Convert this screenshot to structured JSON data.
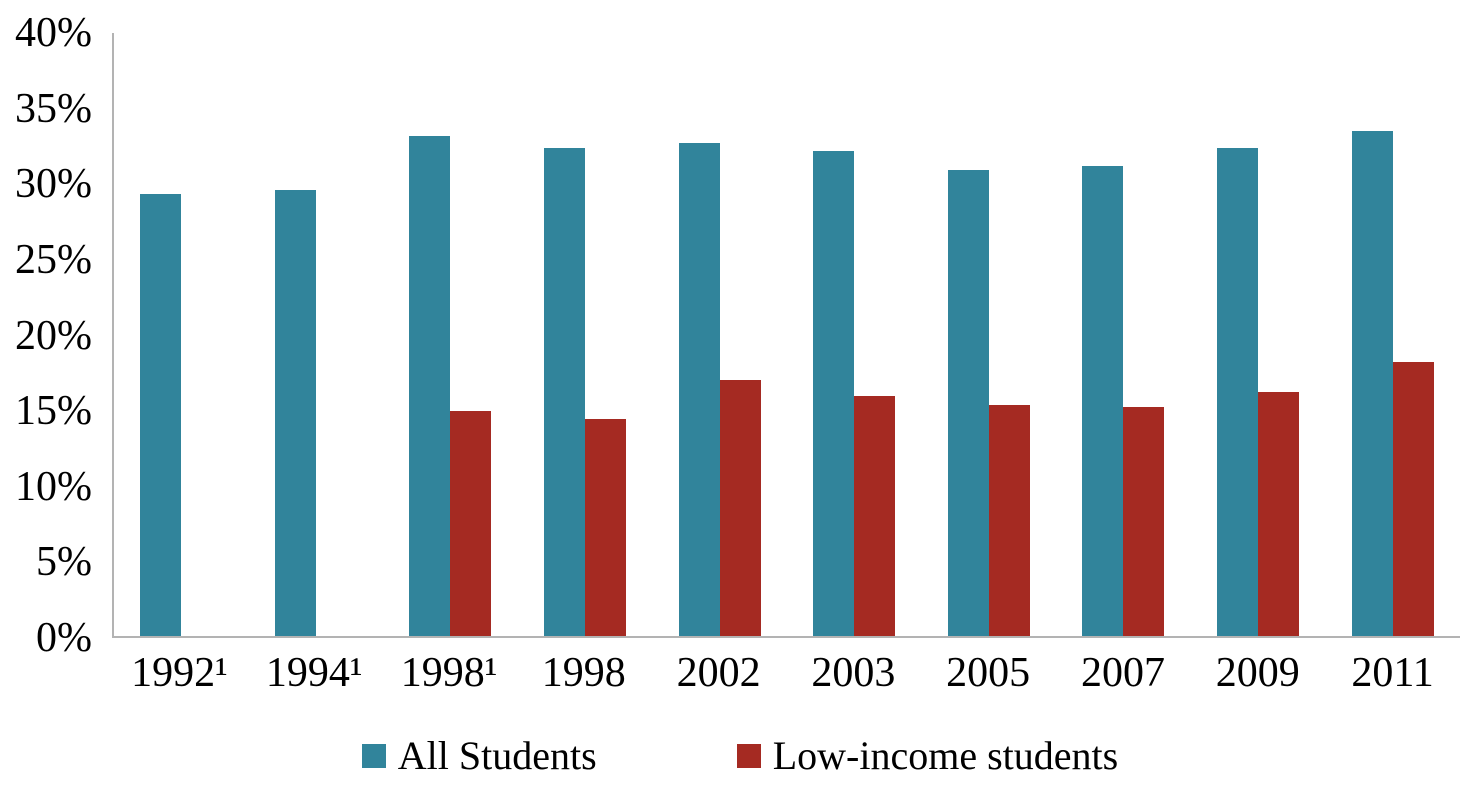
{
  "chart_data": {
    "type": "bar",
    "title": "",
    "xlabel": "",
    "ylabel": "",
    "categories": [
      "1992¹",
      "1994¹",
      "1998¹",
      "1998",
      "2002",
      "2003",
      "2005",
      "2007",
      "2009",
      "2011"
    ],
    "series": [
      {
        "name": "All Students",
        "color": "#31849b",
        "values": [
          29.3,
          29.6,
          33.2,
          32.4,
          32.7,
          32.2,
          30.9,
          31.2,
          32.4,
          33.5
        ]
      },
      {
        "name": "Low-income students",
        "color": "#a52a22",
        "values": [
          null,
          null,
          14.9,
          14.4,
          17.0,
          15.9,
          15.3,
          15.2,
          16.2,
          18.2
        ]
      }
    ],
    "ylim": [
      0,
      40
    ],
    "ytick_step": 5,
    "ytick_labels": [
      "0%",
      "5%",
      "10%",
      "15%",
      "20%",
      "25%",
      "30%",
      "35%",
      "40%"
    ],
    "grid": false,
    "legend_position": "bottom"
  },
  "legend": {
    "items": [
      {
        "label": "All Students",
        "color": "#31849b"
      },
      {
        "label": "Low-income students",
        "color": "#a52a22"
      }
    ]
  },
  "colors": {
    "axis": "#b3b3b3",
    "background": "#ffffff",
    "text": "#000000"
  }
}
